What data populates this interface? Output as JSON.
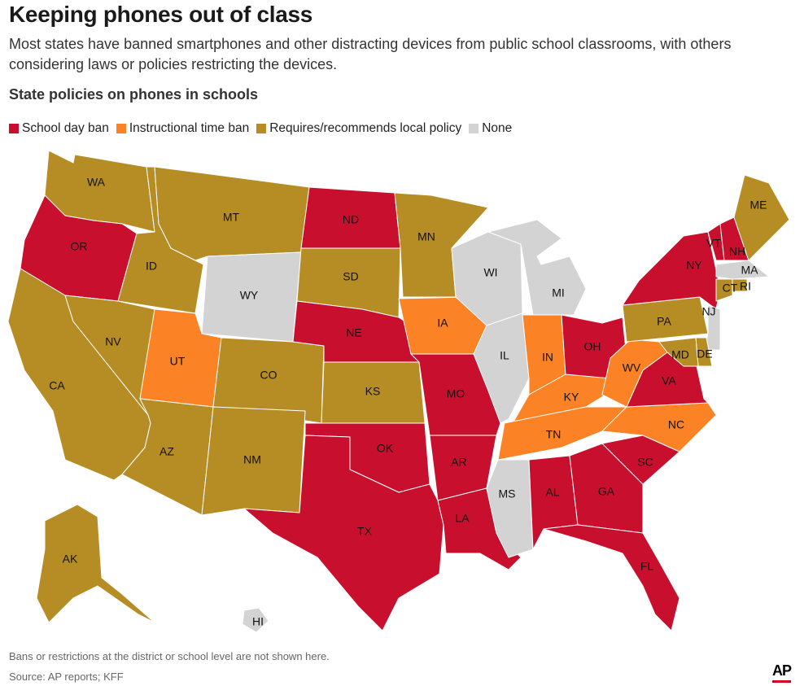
{
  "header": {
    "title": "Keeping phones out of class",
    "subtitle": "Most states have banned smartphones and other distracting devices from public school classrooms, with others considering laws or policies restricting the devices.",
    "chart_title": "State policies on phones in schools"
  },
  "legend": [
    {
      "key": "ban",
      "label": "School day ban",
      "color": "#c8102e"
    },
    {
      "key": "instr",
      "label": "Instructional time ban",
      "color": "#fb8225"
    },
    {
      "key": "local",
      "label": "Requires/recommends local policy",
      "color": "#b68d24"
    },
    {
      "key": "none",
      "label": "None",
      "color": "#d3d3d3"
    }
  ],
  "chart_data": {
    "type": "map",
    "states": {
      "WA": "local",
      "OR": "ban",
      "CA": "local",
      "ID": "local",
      "NV": "local",
      "MT": "local",
      "WY": "none",
      "UT": "instr",
      "AZ": "local",
      "CO": "local",
      "NM": "local",
      "ND": "ban",
      "SD": "local",
      "NE": "ban",
      "KS": "local",
      "OK": "ban",
      "TX": "ban",
      "MN": "local",
      "IA": "instr",
      "MO": "ban",
      "AR": "ban",
      "LA": "ban",
      "WI": "none",
      "IL": "none",
      "MS": "none",
      "MI": "none",
      "IN": "instr",
      "KY": "instr",
      "TN": "instr",
      "AL": "ban",
      "OH": "ban",
      "GA": "ban",
      "FL": "ban",
      "SC": "ban",
      "NC": "instr",
      "VA": "ban",
      "WV": "instr",
      "PA": "local",
      "NY": "ban",
      "VT": "ban",
      "NH": "ban",
      "ME": "local",
      "MA": "none",
      "RI": "local",
      "CT": "local",
      "NJ": "none",
      "DE": "local",
      "MD": "local",
      "AK": "local",
      "HI": "none"
    }
  },
  "footer": {
    "note": "Bans or restrictions at the district or school level are not shown here.",
    "source": "Source: AP reports; KFF",
    "logo": "AP"
  }
}
